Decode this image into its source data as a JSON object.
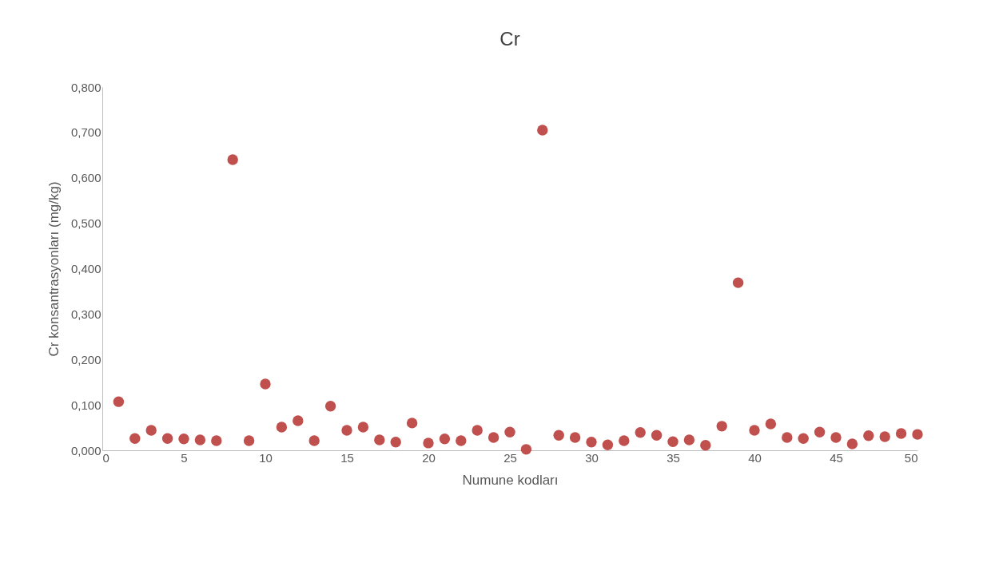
{
  "chart_data": {
    "type": "scatter",
    "title": "Cr",
    "xlabel": "Numune kodları",
    "ylabel": "Cr konsantrasyonları (mg/kg)",
    "x": [
      1,
      2,
      3,
      4,
      5,
      6,
      7,
      8,
      9,
      10,
      11,
      12,
      13,
      14,
      15,
      16,
      17,
      18,
      19,
      20,
      21,
      22,
      23,
      24,
      25,
      26,
      27,
      28,
      29,
      30,
      31,
      32,
      33,
      34,
      35,
      36,
      37,
      38,
      39,
      40,
      41,
      42,
      43,
      44,
      45,
      46,
      47,
      48,
      49,
      50
    ],
    "series": [
      {
        "color": "#c0504d",
        "values": [
          0.107,
          0.026,
          0.044,
          0.026,
          0.025,
          0.023,
          0.021,
          0.64,
          0.021,
          0.146,
          0.051,
          0.065,
          0.021,
          0.097,
          0.044,
          0.051,
          0.023,
          0.018,
          0.06,
          0.016,
          0.025,
          0.021,
          0.044,
          0.028,
          0.04,
          0.002,
          0.705,
          0.033,
          0.028,
          0.018,
          0.012,
          0.021,
          0.039,
          0.033,
          0.019,
          0.023,
          0.011,
          0.053,
          0.369,
          0.044,
          0.058,
          0.028,
          0.026,
          0.04,
          0.028,
          0.014,
          0.032,
          0.03,
          0.037,
          0.035
        ]
      }
    ],
    "xlim": [
      0,
      50
    ],
    "xticks": [
      0,
      5,
      10,
      15,
      20,
      25,
      30,
      35,
      40,
      45,
      50
    ],
    "ylim": [
      0,
      0.8
    ],
    "yticks": [
      {
        "value": 0,
        "label": "0,000"
      },
      {
        "value": 0.1,
        "label": "0,100"
      },
      {
        "value": 0.2,
        "label": "0,200"
      },
      {
        "value": 0.3,
        "label": "0,300"
      },
      {
        "value": 0.4,
        "label": "0,400"
      },
      {
        "value": 0.5,
        "label": "0,500"
      },
      {
        "value": 0.6,
        "label": "0,600"
      },
      {
        "value": 0.7,
        "label": "0,700"
      },
      {
        "value": 0.8,
        "label": "0,800"
      }
    ],
    "marker": "circle",
    "grid": false,
    "legend": false
  }
}
